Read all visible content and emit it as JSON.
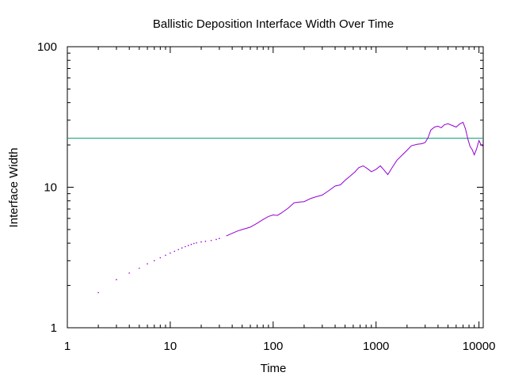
{
  "chart_data": {
    "type": "scatter",
    "title": "Ballistic Deposition Interface Width Over Time",
    "xlabel": "Time",
    "ylabel": "Interface Width",
    "x_scale": "log",
    "y_scale": "log",
    "xlim": [
      1,
      11000
    ],
    "ylim": [
      1,
      100
    ],
    "x_ticks": [
      {
        "value": 1,
        "label": "1"
      },
      {
        "value": 10,
        "label": "10"
      },
      {
        "value": 100,
        "label": "100"
      },
      {
        "value": 1000,
        "label": "1000"
      },
      {
        "value": 10000,
        "label": "10000"
      }
    ],
    "y_ticks": [
      {
        "value": 1,
        "label": "1"
      },
      {
        "value": 10,
        "label": "10"
      },
      {
        "value": 100,
        "label": "100"
      }
    ],
    "grid": false,
    "legend": "none",
    "colors": {
      "series": "#9400d3",
      "reference_line": "#009e73",
      "axes": "#000000"
    },
    "series": [
      {
        "points": [
          [
            2,
            1.78
          ],
          [
            3,
            2.2
          ],
          [
            4,
            2.45
          ],
          [
            5,
            2.65
          ],
          [
            6,
            2.85
          ],
          [
            7,
            3.0
          ],
          [
            8,
            3.15
          ],
          [
            9,
            3.28
          ],
          [
            10,
            3.4
          ],
          [
            11,
            3.5
          ],
          [
            12,
            3.6
          ],
          [
            13,
            3.7
          ],
          [
            14,
            3.78
          ],
          [
            15,
            3.85
          ],
          [
            16,
            3.92
          ],
          [
            17,
            3.98
          ],
          [
            18,
            4.02
          ],
          [
            20,
            4.08
          ],
          [
            22,
            4.12
          ],
          [
            25,
            4.18
          ],
          [
            28,
            4.25
          ],
          [
            30,
            4.32
          ],
          [
            35,
            4.5
          ],
          [
            40,
            4.7
          ],
          [
            45,
            4.88
          ],
          [
            50,
            5.0
          ],
          [
            55,
            5.1
          ],
          [
            60,
            5.2
          ],
          [
            70,
            5.55
          ],
          [
            80,
            5.9
          ],
          [
            90,
            6.2
          ],
          [
            100,
            6.35
          ],
          [
            110,
            6.3
          ],
          [
            120,
            6.55
          ],
          [
            140,
            7.1
          ],
          [
            160,
            7.75
          ],
          [
            180,
            7.85
          ],
          [
            200,
            7.9
          ],
          [
            230,
            8.3
          ],
          [
            260,
            8.55
          ],
          [
            300,
            8.8
          ],
          [
            350,
            9.5
          ],
          [
            400,
            10.2
          ],
          [
            450,
            10.4
          ],
          [
            500,
            11.2
          ],
          [
            560,
            12.0
          ],
          [
            620,
            12.8
          ],
          [
            680,
            13.8
          ],
          [
            750,
            14.2
          ],
          [
            820,
            13.6
          ],
          [
            900,
            12.9
          ],
          [
            1000,
            13.4
          ],
          [
            1100,
            14.2
          ],
          [
            1200,
            13.2
          ],
          [
            1300,
            12.3
          ],
          [
            1450,
            14.0
          ],
          [
            1600,
            15.6
          ],
          [
            1800,
            17.0
          ],
          [
            2000,
            18.3
          ],
          [
            2200,
            19.7
          ],
          [
            2500,
            20.2
          ],
          [
            2800,
            20.4
          ],
          [
            3000,
            20.8
          ],
          [
            3200,
            22.5
          ],
          [
            3400,
            25.5
          ],
          [
            3700,
            26.8
          ],
          [
            4000,
            27.2
          ],
          [
            4300,
            26.5
          ],
          [
            4600,
            27.8
          ],
          [
            5000,
            28.3
          ],
          [
            5500,
            27.5
          ],
          [
            6000,
            26.8
          ],
          [
            6500,
            28.2
          ],
          [
            7000,
            29.0
          ],
          [
            7400,
            26.0
          ],
          [
            7800,
            22.0
          ],
          [
            8200,
            19.5
          ],
          [
            8600,
            18.5
          ],
          [
            9000,
            17.0
          ],
          [
            9500,
            18.8
          ],
          [
            10000,
            21.5
          ],
          [
            10500,
            20.0
          ],
          [
            11000,
            19.5
          ]
        ]
      }
    ],
    "reference_line": {
      "y": 22.3
    }
  }
}
